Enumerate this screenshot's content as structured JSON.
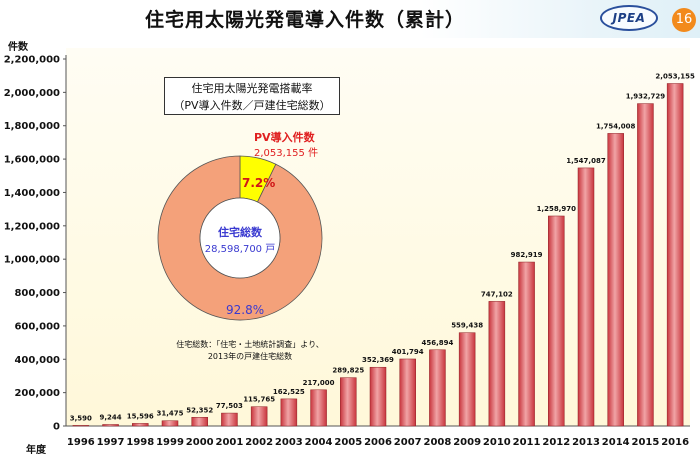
{
  "header": {
    "title": "住宅用太陽光発電導入件数（累計）",
    "logo_text": "JPEA",
    "page_number": "16"
  },
  "axes": {
    "y_unit": "件数",
    "x_unit": "年度"
  },
  "colors": {
    "bar": "#c8353d",
    "bar_highlight": "#f1a4a6",
    "donut_main": "#f4a17a",
    "donut_pv": "#ffff00",
    "accent_red": "#e02020",
    "accent_blue": "#3a3ad0"
  },
  "inset": {
    "box_line1": "住宅用太陽光発電搭載率",
    "box_line2": "（PV導入件数／戸建住宅総数）",
    "pv_title": "PV導入件数",
    "pv_value": "2,053,155 件",
    "inner_title": "住宅総数",
    "inner_value": "28,598,700 戸",
    "pv_percent": "7.2%",
    "house_percent": "92.8%",
    "source_line1": "住宅総数：「住宅・土地統計調査」より、",
    "source_line2": "2013年の戸建住宅総数",
    "donut": {
      "type": "pie",
      "slices": [
        {
          "label": "PV導入件数",
          "value": 7.2
        },
        {
          "label": "住宅総数",
          "value": 92.8
        }
      ]
    }
  },
  "chart_data": {
    "type": "bar",
    "categories": [
      "1996",
      "1997",
      "1998",
      "1999",
      "2000",
      "2001",
      "2002",
      "2003",
      "2004",
      "2005",
      "2006",
      "2007",
      "2008",
      "2009",
      "2010",
      "2011",
      "2012",
      "2013",
      "2014",
      "2015",
      "2016"
    ],
    "values": [
      3590,
      9244,
      15596,
      31475,
      52352,
      77503,
      115765,
      162525,
      217000,
      289825,
      352369,
      401794,
      456894,
      559438,
      747102,
      982919,
      1258970,
      1547087,
      1754008,
      1932729,
      2053155
    ],
    "value_labels": [
      "3,590",
      "9,244",
      "15,596",
      "31,475",
      "52,352",
      "77,503",
      "115,765",
      "162,525",
      "217,000",
      "289,825",
      "352,369",
      "401,794",
      "456,894",
      "559,438",
      "747,102",
      "982,919",
      "1,258,970",
      "1,547,087",
      "1,754,008",
      "1,932,729",
      "2,053,155"
    ],
    "y_ticks": [
      "0",
      "200,000",
      "400,000",
      "600,000",
      "800,000",
      "1,000,000",
      "1,200,000",
      "1,400,000",
      "1,600,000",
      "1,800,000",
      "2,000,000",
      "2,200,000"
    ],
    "ylim": [
      0,
      2200000
    ],
    "grid": false
  }
}
